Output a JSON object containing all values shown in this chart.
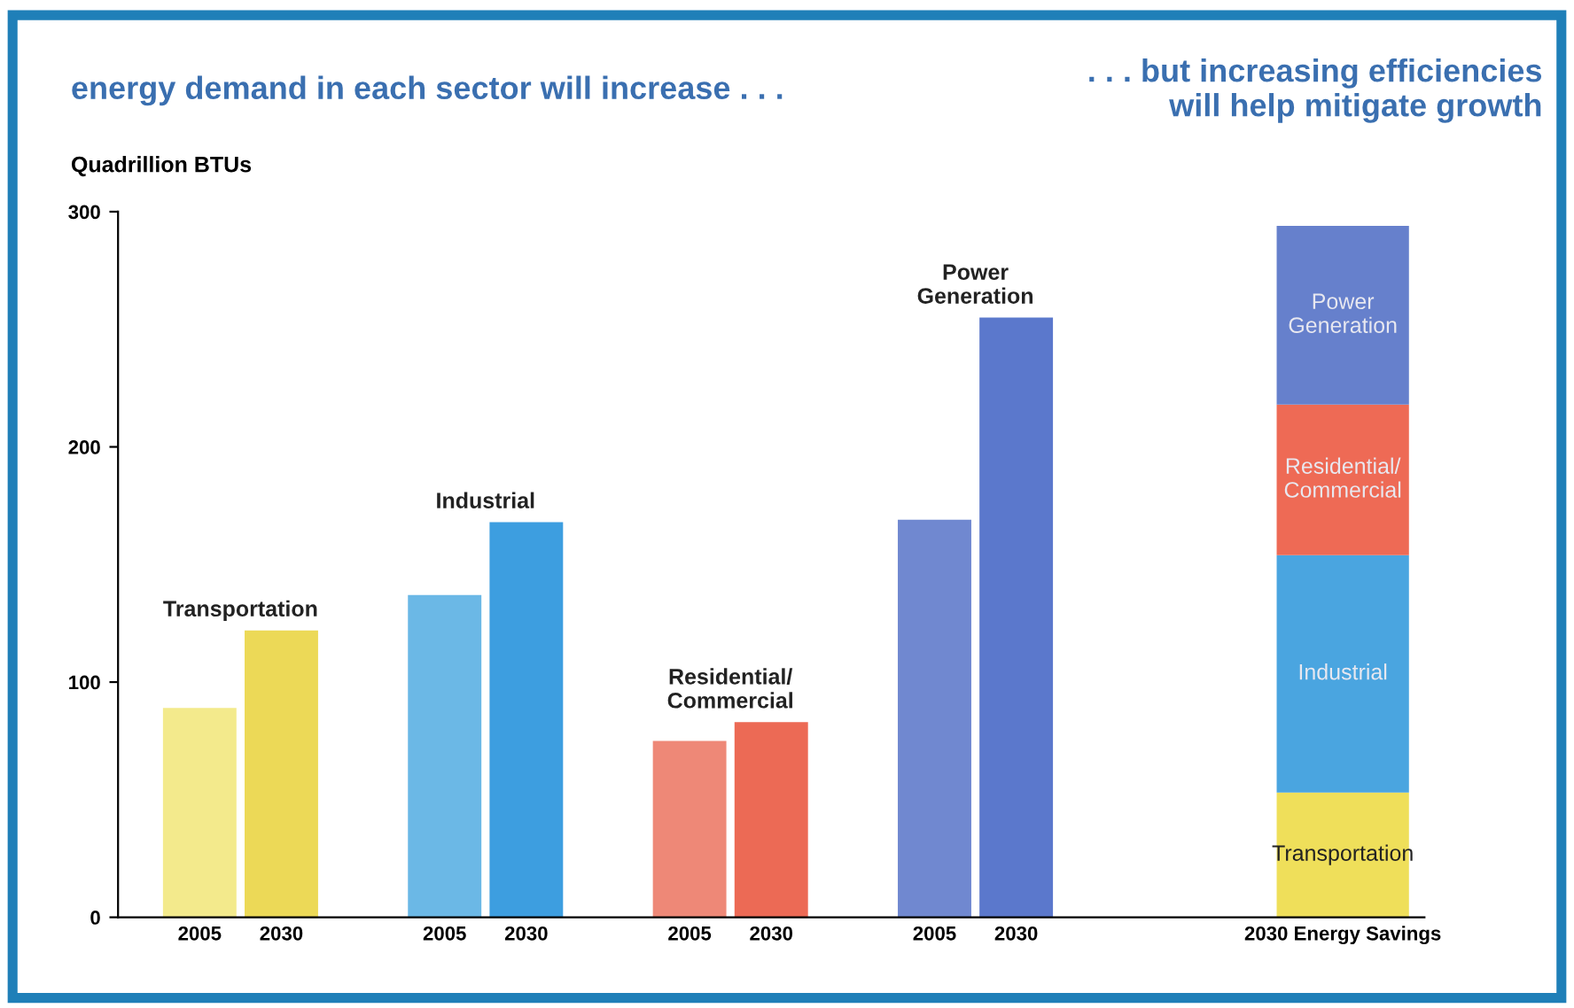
{
  "chart_data": {
    "type": "bar",
    "title": "energy demand in each sector will increase . . .",
    "subtitle": ". . . but increasing efficiencies\nwill help mitigate growth",
    "ylabel": "Quadrillion BTUs",
    "categories": [
      "2005",
      "2030",
      null,
      "2005",
      "2030",
      null,
      "2005",
      "2030",
      null,
      "2005",
      "2030",
      null,
      null,
      null,
      "2030 Energy Savings"
    ],
    "stacked": true,
    "series": [
      {
        "name": "Transportation",
        "colors": [
          "#f3ea8c",
          "#ecd957",
          null,
          null,
          null,
          null,
          null,
          null,
          null,
          null,
          null,
          null,
          null,
          null,
          "#efdf5a"
        ],
        "values": [
          89,
          122,
          null,
          null,
          null,
          null,
          null,
          null,
          null,
          null,
          null,
          null,
          null,
          null,
          53
        ]
      },
      {
        "name": "Industrial",
        "colors": [
          null,
          null,
          null,
          "#6bb8e6",
          "#3d9ee0",
          null,
          null,
          null,
          null,
          null,
          null,
          null,
          null,
          null,
          "#4aa5e0"
        ],
        "values": [
          null,
          null,
          null,
          137,
          168,
          null,
          null,
          null,
          null,
          null,
          null,
          null,
          null,
          null,
          101
        ]
      },
      {
        "name": "Residential/\nCommercial",
        "colors": [
          null,
          null,
          null,
          null,
          null,
          null,
          "#ee8877",
          "#ec6a55",
          null,
          null,
          null,
          null,
          null,
          null,
          "#ee6a55"
        ],
        "values": [
          null,
          null,
          null,
          null,
          null,
          null,
          75,
          83,
          null,
          null,
          null,
          null,
          null,
          null,
          64
        ]
      },
      {
        "name": "Power\nGeneration",
        "colors": [
          null,
          null,
          null,
          null,
          null,
          null,
          null,
          null,
          null,
          "#7088d0",
          "#5b78cc",
          null,
          null,
          null,
          "#6680cc"
        ],
        "values": [
          null,
          null,
          null,
          null,
          null,
          null,
          null,
          null,
          null,
          169,
          255,
          null,
          null,
          null,
          76
        ]
      }
    ],
    "ylim": [
      0,
      300
    ],
    "yticks": [
      0,
      100,
      200,
      300
    ],
    "grid": false,
    "legend": false
  }
}
